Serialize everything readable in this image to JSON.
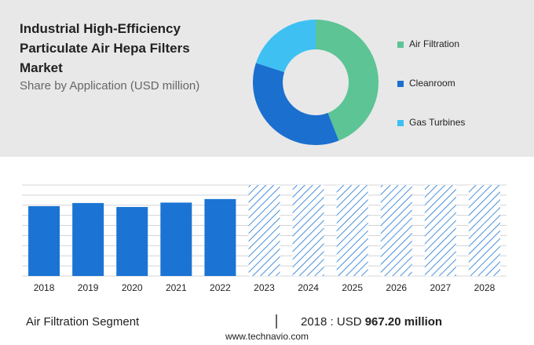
{
  "chart_data": [
    {
      "type": "pie",
      "title": "Industrial High-Efficiency Particulate Air Hepa Filters Market",
      "subtitle": "Share by Application (USD million)",
      "categories": [
        "Air Filtration",
        "Cleanroom",
        "Gas Turbines"
      ],
      "values": [
        44,
        36,
        20
      ],
      "colors": [
        "#5cc495",
        "#1b6fcf",
        "#3ec1f2"
      ],
      "donut": true
    },
    {
      "type": "bar",
      "categories": [
        "2018",
        "2019",
        "2020",
        "2021",
        "2022",
        "2023",
        "2024",
        "2025",
        "2026",
        "2027",
        "2028"
      ],
      "values": [
        967.2,
        1011,
        956,
        1017,
        1066,
        null,
        null,
        null,
        null,
        null,
        null
      ],
      "color": "#1b74d3",
      "ylim": [
        0,
        1260
      ],
      "yticks": [
        0,
        140,
        280,
        420,
        560,
        700,
        840,
        980,
        1120,
        1260
      ],
      "grid": true
    }
  ],
  "highlight": {
    "segment": "Air Filtration Segment",
    "label": "2018 : USD",
    "value": "967.20 million"
  },
  "source": "www.technavio.com"
}
